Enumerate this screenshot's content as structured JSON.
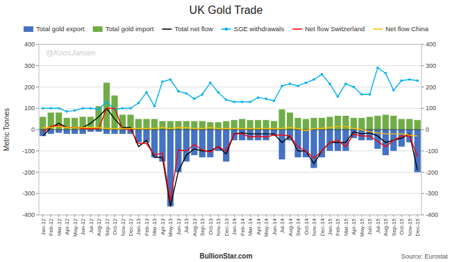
{
  "chart_data": {
    "type": "bar",
    "title": "UK Gold Trade",
    "ylabel": "Metric Tonnes",
    "annotations": [
      "@KoosJansen",
      "Source: Eurostat",
      "BullionStar.com"
    ],
    "categories": [
      "Jan-12",
      "Feb-12",
      "Mar-12",
      "Apr-12",
      "May-12",
      "Jun-12",
      "Jul-12",
      "Aug-12",
      "Sep-12",
      "Oct-12",
      "Nov-12",
      "Dec-12",
      "Jan-13",
      "Feb-13",
      "Mar-13",
      "Apr-13",
      "May-13",
      "Jun-13",
      "Jul-13",
      "Aug-13",
      "Sep-13",
      "Oct-13",
      "Nov-13",
      "Dec-13",
      "Jan-14",
      "Feb-14",
      "Mar-14",
      "Apr-14",
      "May-14",
      "Jun-14",
      "Jul-14",
      "Aug-14",
      "Sep-14",
      "Oct-14",
      "Nov-14",
      "Dec-14",
      "Jan-15",
      "Feb-15",
      "Mar-15",
      "Apr-15",
      "May-15",
      "Jun-15",
      "Jul-15",
      "Aug-15",
      "Sep-15",
      "Oct-15",
      "Nov-15",
      "Dec-15"
    ],
    "series": [
      {
        "name": "Total gold export",
        "type": "bar",
        "color": "#4472C4",
        "values": [
          -30,
          -20,
          -15,
          -20,
          -20,
          -20,
          -10,
          -10,
          -20,
          -20,
          -20,
          -20,
          -60,
          -60,
          -130,
          -150,
          -360,
          -200,
          -150,
          -120,
          -130,
          -130,
          -100,
          -150,
          -50,
          -50,
          -50,
          -50,
          -50,
          -30,
          -140,
          -50,
          -130,
          -130,
          -180,
          -130,
          -100,
          -100,
          -100,
          -40,
          -50,
          -50,
          -90,
          -120,
          -100,
          -80,
          -60,
          -200
        ]
      },
      {
        "name": "Total gold import",
        "type": "bar",
        "color": "#70AD47",
        "values": [
          60,
          80,
          80,
          55,
          55,
          60,
          60,
          110,
          220,
          160,
          70,
          70,
          50,
          50,
          50,
          40,
          40,
          40,
          40,
          40,
          40,
          35,
          35,
          40,
          45,
          50,
          45,
          45,
          45,
          40,
          95,
          80,
          55,
          50,
          55,
          55,
          60,
          65,
          65,
          55,
          55,
          60,
          65,
          70,
          65,
          50,
          50,
          45
        ]
      },
      {
        "name": "Total net flow",
        "type": "line",
        "color": "#000000",
        "values": [
          -30,
          10,
          30,
          10,
          10,
          10,
          30,
          60,
          100,
          50,
          10,
          10,
          -80,
          -50,
          -130,
          -130,
          -360,
          -195,
          -120,
          -90,
          -100,
          -100,
          -80,
          -115,
          -20,
          -15,
          -20,
          -20,
          -20,
          -20,
          -60,
          -30,
          -100,
          -100,
          -160,
          -100,
          -60,
          -60,
          -60,
          -10,
          -20,
          -15,
          -30,
          -60,
          -50,
          -40,
          -20,
          -190
        ]
      },
      {
        "name": "SGE withdrawals",
        "type": "line",
        "color": "#00B0F0",
        "marker": "circle",
        "values": [
          100,
          100,
          100,
          85,
          90,
          100,
          100,
          95,
          130,
          95,
          100,
          100,
          125,
          175,
          110,
          225,
          235,
          180,
          170,
          145,
          165,
          220,
          175,
          140,
          130,
          130,
          130,
          150,
          145,
          135,
          205,
          215,
          205,
          220,
          235,
          260,
          215,
          155,
          215,
          200,
          165,
          165,
          290,
          265,
          185,
          230,
          235,
          230
        ]
      },
      {
        "name": "Net flow Switzerland",
        "type": "line",
        "color": "#FF0000",
        "values": [
          -10,
          15,
          20,
          10,
          10,
          5,
          5,
          5,
          100,
          100,
          5,
          0,
          -65,
          -65,
          -120,
          -110,
          -335,
          -95,
          -100,
          -70,
          -95,
          -105,
          -80,
          -100,
          -20,
          -20,
          -35,
          -30,
          -35,
          -25,
          -25,
          -30,
          -80,
          -100,
          -135,
          -100,
          -60,
          -50,
          -80,
          -20,
          -30,
          -30,
          -55,
          -80,
          -50,
          -30,
          -30,
          -125
        ]
      },
      {
        "name": "Net flow China",
        "type": "line",
        "color": "#FFC000",
        "values": [
          10,
          10,
          15,
          10,
          10,
          10,
          10,
          10,
          5,
          5,
          5,
          5,
          5,
          5,
          5,
          10,
          5,
          10,
          10,
          5,
          5,
          10,
          5,
          5,
          5,
          5,
          5,
          5,
          5,
          5,
          5,
          10,
          5,
          -5,
          5,
          5,
          10,
          15,
          15,
          5,
          0,
          -10,
          -15,
          -20,
          -20,
          -20,
          -25,
          -30
        ]
      }
    ],
    "ylim": [
      -400,
      400
    ],
    "yticks": [
      -400,
      -300,
      -200,
      -100,
      0,
      100,
      200,
      300,
      400
    ],
    "y2lim": [
      -400,
      400
    ],
    "y2ticks": [
      -400,
      -300,
      -200,
      -100,
      0,
      100,
      200,
      300,
      400
    ],
    "grid": true,
    "legend": "top"
  }
}
